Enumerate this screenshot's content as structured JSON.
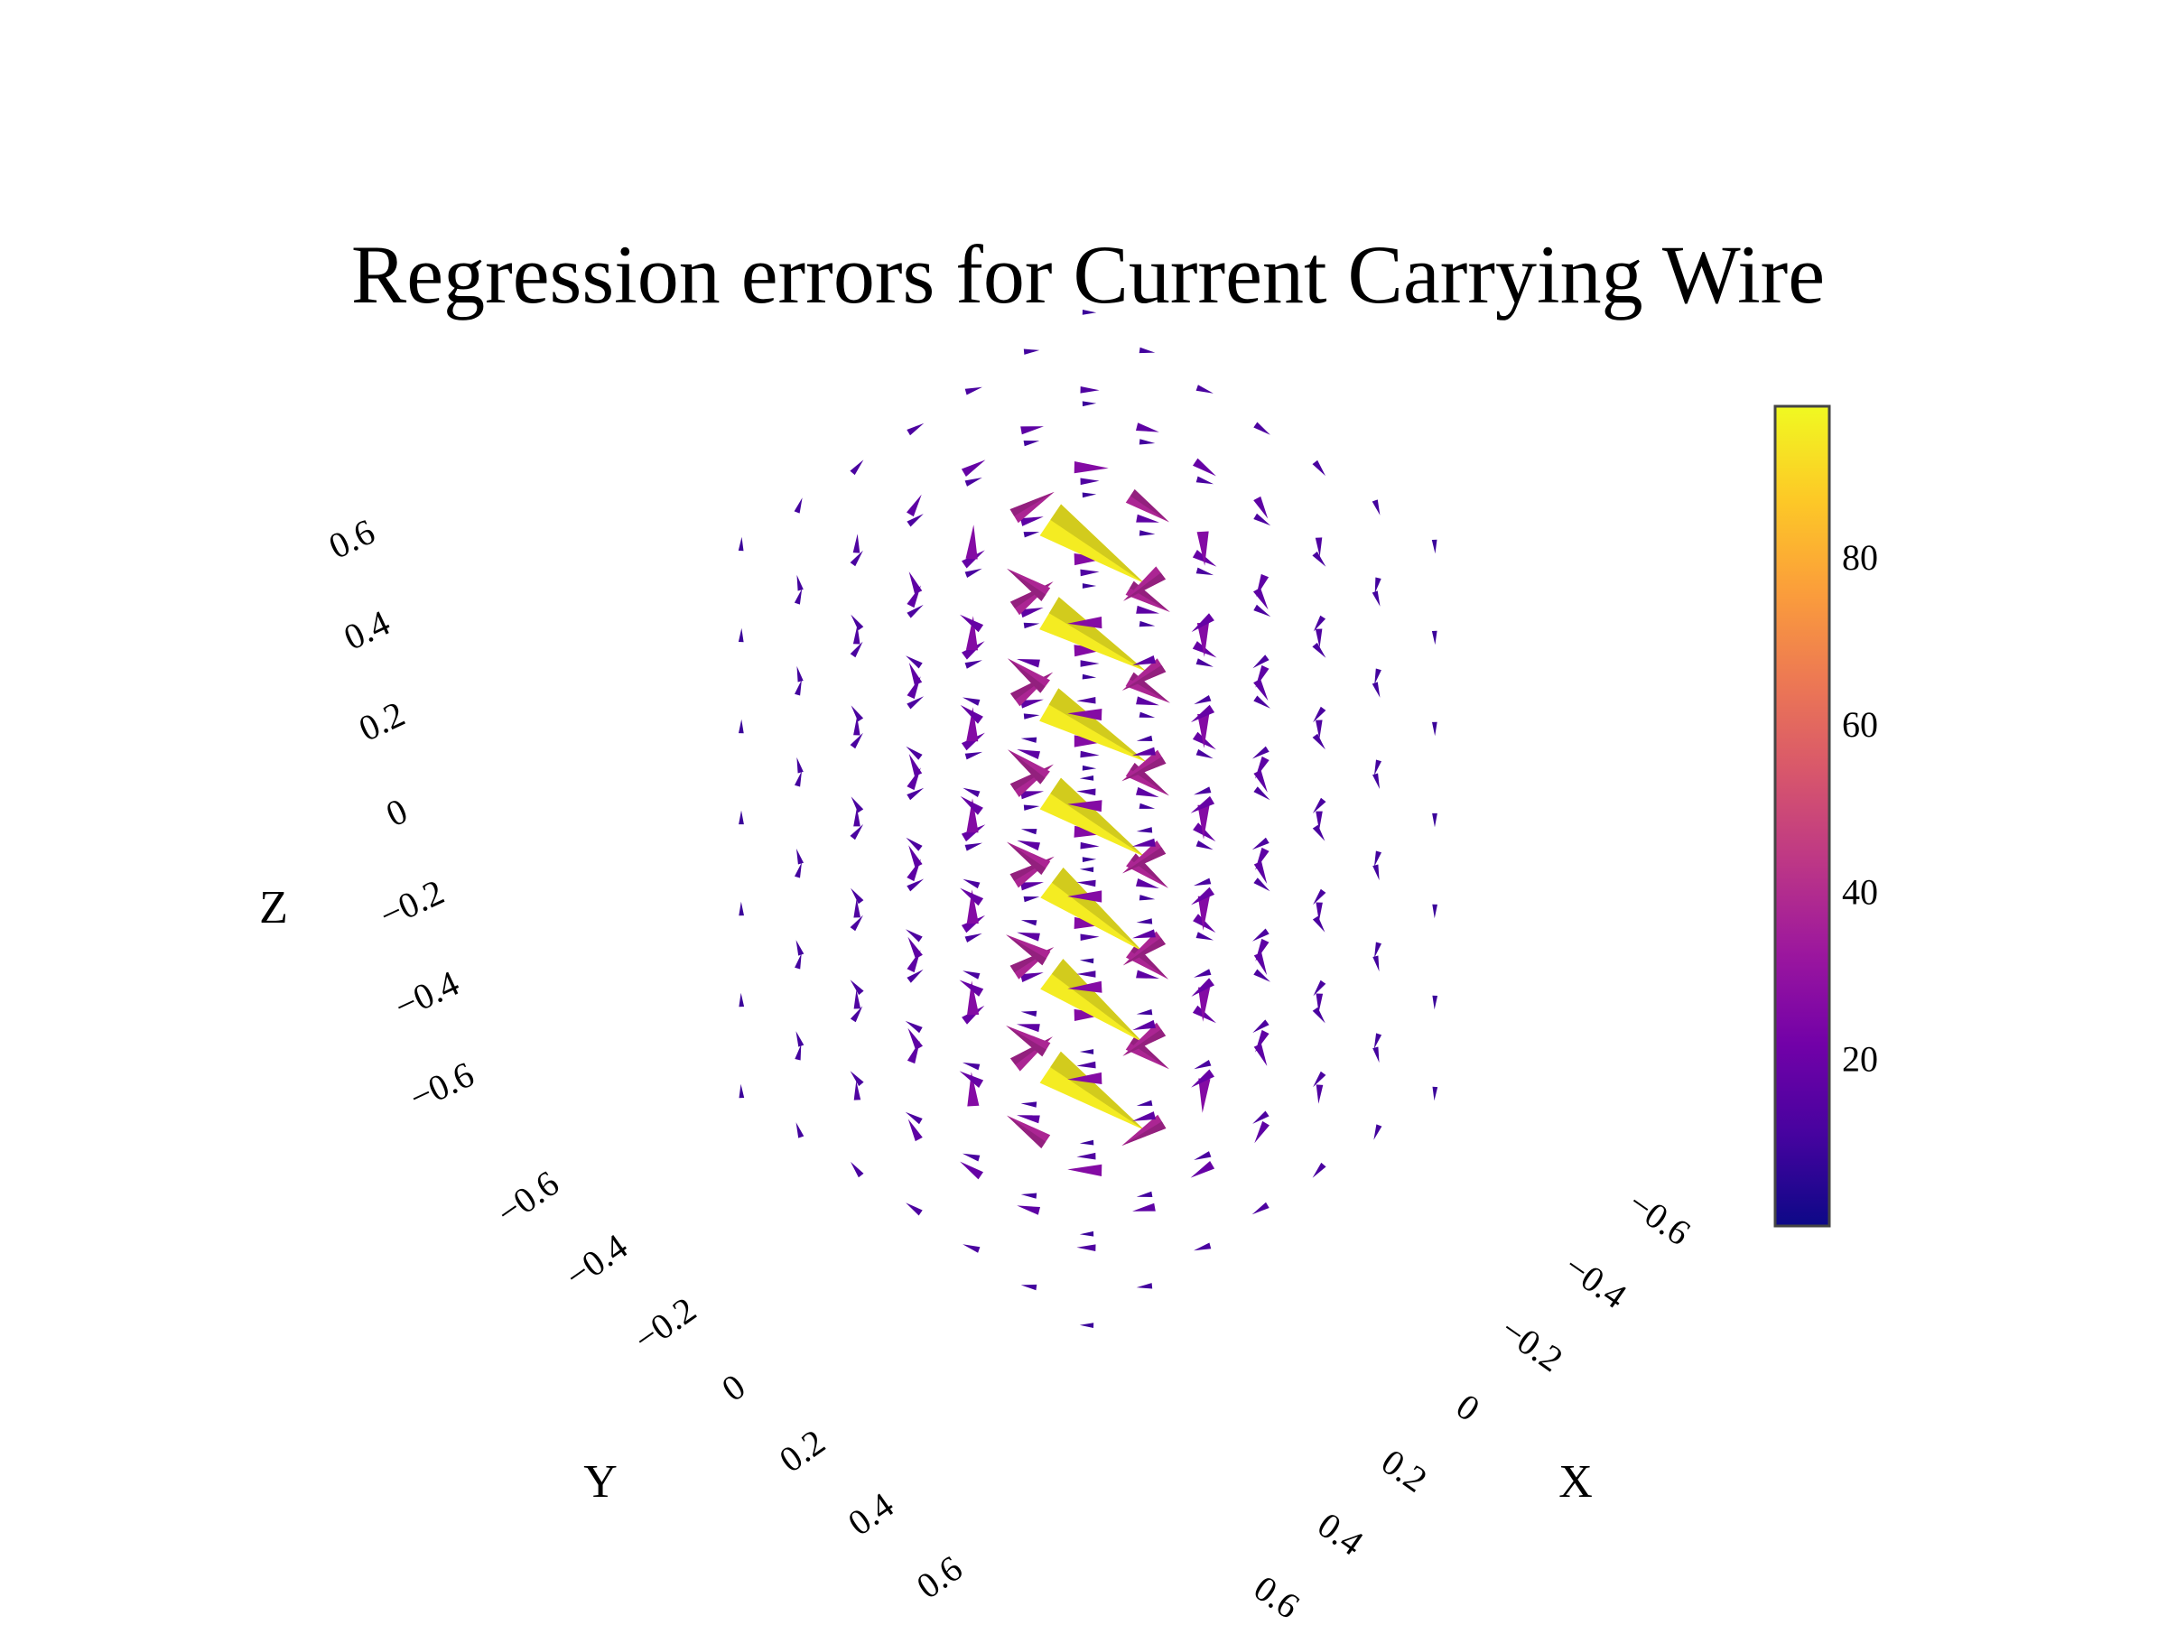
{
  "chart_data": {
    "type": "cone",
    "title": "Regression errors for Current Carrying Wire",
    "colorscale": "plasma",
    "colorscale_stops": [
      "#0d0887",
      "#46039f",
      "#7201a8",
      "#9c179e",
      "#bd3786",
      "#d8576b",
      "#ed7953",
      "#fb9f3a",
      "#fdca26",
      "#f0f921"
    ],
    "cmin": 0,
    "cmax": 98,
    "grid": [
      -0.6,
      -0.4,
      -0.2,
      0,
      0.2,
      0.4,
      0.6
    ],
    "wire": {
      "x": 0,
      "y": 0,
      "z_range": [
        -0.6,
        0.6
      ],
      "peak_error": 95
    },
    "error_model": "magnitude proportional to inverse distance from the wire",
    "colorbar": {
      "tickvals": [
        20,
        40,
        60,
        80
      ],
      "ticktext": [
        "20",
        "40",
        "60",
        "80"
      ]
    },
    "axes": {
      "x": {
        "title": "X",
        "range": [
          -0.6,
          0.6
        ],
        "tickvals": [
          -0.6,
          -0.4,
          -0.2,
          0,
          0.2,
          0.4,
          0.6
        ],
        "ticktext": [
          "−0.6",
          "−0.4",
          "−0.2",
          "0",
          "0.2",
          "0.4",
          "0.6"
        ]
      },
      "y": {
        "title": "Y",
        "range": [
          -0.6,
          0.6
        ],
        "tickvals": [
          -0.6,
          -0.4,
          -0.2,
          0,
          0.2,
          0.4,
          0.6
        ],
        "ticktext": [
          "−0.6",
          "−0.4",
          "−0.2",
          "0",
          "0.2",
          "0.4",
          "0.6"
        ]
      },
      "z": {
        "title": "Z",
        "range": [
          -0.6,
          0.6
        ],
        "tickvals": [
          -0.6,
          -0.4,
          -0.2,
          0,
          0.2,
          0.4,
          0.6
        ],
        "ticktext": [
          "−0.6",
          "−0.4",
          "−0.2",
          "0",
          "0.2",
          "0.4",
          "0.6"
        ]
      }
    },
    "grid_lines": false,
    "background_planes": false
  }
}
